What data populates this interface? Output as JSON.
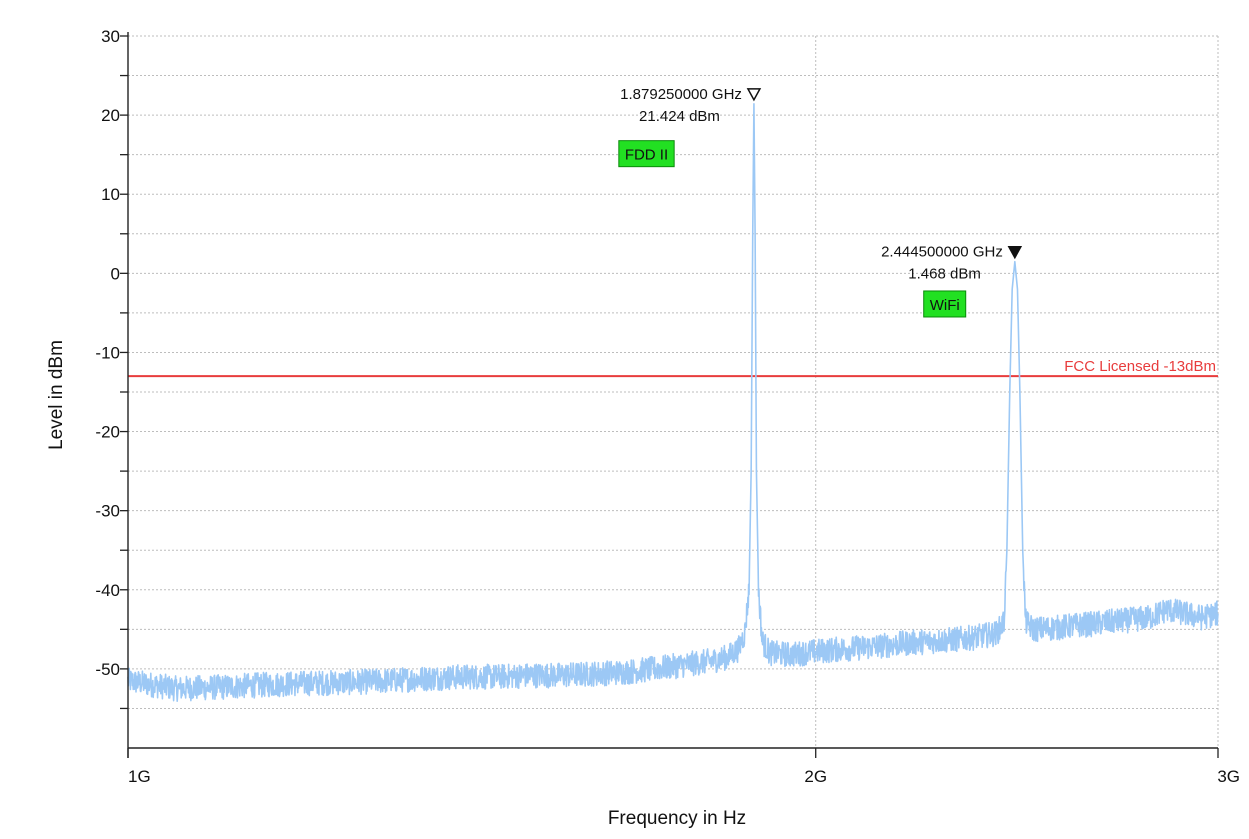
{
  "chart_data": {
    "type": "line",
    "xlabel": "Frequency in Hz",
    "ylabel": "Level in dBm",
    "x_scale": "log",
    "xlim": [
      1000000000,
      3000000000
    ],
    "ylim": [
      -60,
      30
    ],
    "x_ticks": [
      {
        "value": 1000000000,
        "label": "1G"
      },
      {
        "value": 2000000000,
        "label": "2G"
      },
      {
        "value": 3000000000,
        "label": "3G"
      }
    ],
    "y_ticks": [
      {
        "value": 30,
        "label": "30"
      },
      {
        "value": 20,
        "label": "20"
      },
      {
        "value": 10,
        "label": "10"
      },
      {
        "value": 0,
        "label": "0"
      },
      {
        "value": -10,
        "label": "-10"
      },
      {
        "value": -20,
        "label": "-20"
      },
      {
        "value": -30,
        "label": "-30"
      },
      {
        "value": -40,
        "label": "-40"
      },
      {
        "value": -50,
        "label": "-50"
      }
    ],
    "y_minor_step": 5,
    "grid": true,
    "series": [
      {
        "color": "#9cc8f5",
        "points": [
          [
            1000000000,
            -51.5
          ],
          [
            1050000000,
            -52.5
          ],
          [
            1100000000,
            -52.3
          ],
          [
            1150000000,
            -52.0
          ],
          [
            1200000000,
            -51.8
          ],
          [
            1250000000,
            -51.7
          ],
          [
            1300000000,
            -51.5
          ],
          [
            1350000000,
            -51.2
          ],
          [
            1400000000,
            -51.0
          ],
          [
            1450000000,
            -51.0
          ],
          [
            1500000000,
            -50.8
          ],
          [
            1550000000,
            -50.8
          ],
          [
            1600000000,
            -50.6
          ],
          [
            1650000000,
            -50.4
          ],
          [
            1700000000,
            -50.0
          ],
          [
            1750000000,
            -49.5
          ],
          [
            1800000000,
            -49.0
          ],
          [
            1830000000,
            -48.5
          ],
          [
            1850000000,
            -47.5
          ],
          [
            1862000000,
            -45.5
          ],
          [
            1870000000,
            -40.0
          ],
          [
            1874000000,
            -25.0
          ],
          [
            1877000000,
            5.0
          ],
          [
            1879250000,
            21.424
          ],
          [
            1881500000,
            5.0
          ],
          [
            1884000000,
            -25.0
          ],
          [
            1888000000,
            -40.0
          ],
          [
            1895000000,
            -46.5
          ],
          [
            1910000000,
            -48.0
          ],
          [
            1950000000,
            -48.2
          ],
          [
            2000000000,
            -47.8
          ],
          [
            2050000000,
            -47.5
          ],
          [
            2100000000,
            -47.3
          ],
          [
            2150000000,
            -47.0
          ],
          [
            2200000000,
            -46.7
          ],
          [
            2250000000,
            -46.5
          ],
          [
            2300000000,
            -46.3
          ],
          [
            2350000000,
            -46.0
          ],
          [
            2400000000,
            -45.5
          ],
          [
            2418000000,
            -44.0
          ],
          [
            2425000000,
            -35.0
          ],
          [
            2432000000,
            -15.0
          ],
          [
            2438000000,
            -2.0
          ],
          [
            2444500000,
            1.468
          ],
          [
            2451000000,
            -2.0
          ],
          [
            2457000000,
            -15.0
          ],
          [
            2464000000,
            -35.0
          ],
          [
            2471000000,
            -44.0
          ],
          [
            2490000000,
            -45.0
          ],
          [
            2550000000,
            -44.8
          ],
          [
            2600000000,
            -44.5
          ],
          [
            2650000000,
            -44.3
          ],
          [
            2700000000,
            -44.0
          ],
          [
            2750000000,
            -43.8
          ],
          [
            2800000000,
            -43.5
          ],
          [
            2850000000,
            -42.5
          ],
          [
            2900000000,
            -43.0
          ],
          [
            2950000000,
            -43.5
          ],
          [
            3000000000,
            -43.0
          ]
        ]
      }
    ],
    "limit_line": {
      "y": -13,
      "label": "FCC Licensed -13dBm",
      "color": "#e83c3c"
    },
    "markers": [
      {
        "x": 1879250000,
        "y": 21.424,
        "line1": "1.879250000 GHz",
        "line2": "21.424 dBm",
        "style": "open"
      },
      {
        "x": 2444500000,
        "y": 1.468,
        "line1": "2.444500000 GHz",
        "line2": "1.468 dBm",
        "style": "filled"
      }
    ],
    "bands": [
      {
        "label": "FDD II",
        "x": 1640000000,
        "y": 15,
        "color": "#22e022"
      },
      {
        "label": "WiFi",
        "x": 2230000000,
        "y": -4,
        "color": "#22e022"
      }
    ]
  }
}
